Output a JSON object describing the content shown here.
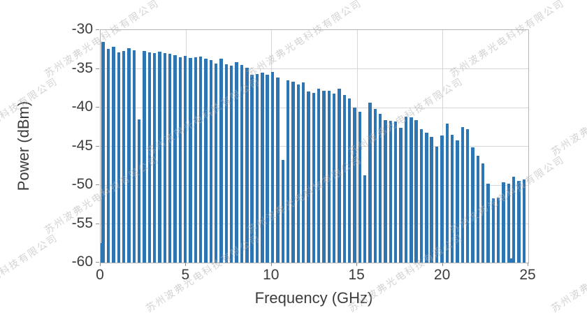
{
  "watermark": {
    "text": "苏州波弗光电科技有限公司",
    "color": "rgba(175,175,175,0.55)"
  },
  "style": {
    "bar_color": "#2e75b4",
    "grid_color": "#d6d6d6",
    "border_color": "#b5b5b5",
    "tick_color": "#8f8f8f",
    "text_color": "#3c3c3c"
  },
  "chart_data": {
    "type": "bar",
    "title": "",
    "xlabel": "Frequency (GHz)",
    "ylabel": "Power (dBm)",
    "xlim": [
      0,
      25
    ],
    "ylim": [
      -60,
      -30
    ],
    "grid": true,
    "legend": "none",
    "x_ticks": [
      0,
      5,
      10,
      15,
      20,
      25
    ],
    "y_ticks": [
      -30,
      -35,
      -40,
      -45,
      -50,
      -55,
      -60
    ],
    "bar_width_ghz": 0.18,
    "points": [
      [
        0.0,
        -57.5
      ],
      [
        0.15,
        -31.5
      ],
      [
        0.45,
        -32.4
      ],
      [
        0.75,
        -32.2
      ],
      [
        1.05,
        -32.9
      ],
      [
        1.35,
        -32.7
      ],
      [
        1.65,
        -32.3
      ],
      [
        1.95,
        -32.6
      ],
      [
        2.25,
        -41.5
      ],
      [
        2.55,
        -32.7
      ],
      [
        2.85,
        -32.9
      ],
      [
        3.15,
        -33.0
      ],
      [
        3.45,
        -32.8
      ],
      [
        3.75,
        -33.0
      ],
      [
        4.05,
        -33.1
      ],
      [
        4.35,
        -33.2
      ],
      [
        4.65,
        -33.5
      ],
      [
        4.95,
        -33.3
      ],
      [
        5.25,
        -33.6
      ],
      [
        5.55,
        -33.5
      ],
      [
        5.85,
        -33.4
      ],
      [
        6.15,
        -33.7
      ],
      [
        6.45,
        -33.9
      ],
      [
        6.75,
        -34.3
      ],
      [
        7.05,
        -33.7
      ],
      [
        7.35,
        -34.4
      ],
      [
        7.65,
        -34.6
      ],
      [
        7.95,
        -34.1
      ],
      [
        8.25,
        -34.5
      ],
      [
        8.55,
        -34.9
      ],
      [
        8.85,
        -35.8
      ],
      [
        9.15,
        -35.7
      ],
      [
        9.45,
        -35.5
      ],
      [
        9.75,
        -35.8
      ],
      [
        10.05,
        -35.4
      ],
      [
        10.35,
        -36.1
      ],
      [
        10.65,
        -46.8
      ],
      [
        10.95,
        -36.5
      ],
      [
        11.25,
        -36.7
      ],
      [
        11.55,
        -37.0
      ],
      [
        11.85,
        -36.8
      ],
      [
        12.15,
        -37.9
      ],
      [
        12.45,
        -38.1
      ],
      [
        12.75,
        -37.6
      ],
      [
        13.05,
        -37.8
      ],
      [
        13.35,
        -37.8
      ],
      [
        13.65,
        -38.2
      ],
      [
        13.95,
        -37.6
      ],
      [
        14.25,
        -38.4
      ],
      [
        14.55,
        -38.8
      ],
      [
        14.85,
        -40.0
      ],
      [
        15.15,
        -40.5
      ],
      [
        15.45,
        -48.7
      ],
      [
        15.75,
        -39.4
      ],
      [
        16.05,
        -40.2
      ],
      [
        16.35,
        -40.8
      ],
      [
        16.65,
        -41.6
      ],
      [
        16.95,
        -41.7
      ],
      [
        17.25,
        -41.8
      ],
      [
        17.55,
        -42.6
      ],
      [
        17.85,
        -41.2
      ],
      [
        18.15,
        -41.3
      ],
      [
        18.45,
        -41.6
      ],
      [
        18.75,
        -42.8
      ],
      [
        19.05,
        -43.2
      ],
      [
        19.35,
        -43.8
      ],
      [
        19.65,
        -45.0
      ],
      [
        19.95,
        -43.6
      ],
      [
        20.25,
        -42.1
      ],
      [
        20.55,
        -43.5
      ],
      [
        20.85,
        -44.2
      ],
      [
        21.15,
        -42.5
      ],
      [
        21.45,
        -42.8
      ],
      [
        21.75,
        -45.1
      ],
      [
        22.05,
        -46.2
      ],
      [
        22.35,
        -47.2
      ],
      [
        22.65,
        -49.8
      ],
      [
        22.95,
        -51.7
      ],
      [
        23.25,
        -51.6
      ],
      [
        23.55,
        -49.6
      ],
      [
        23.85,
        -49.8
      ],
      [
        24.0,
        -59.5
      ],
      [
        24.15,
        -48.9
      ],
      [
        24.45,
        -49.5
      ],
      [
        24.75,
        -49.3
      ]
    ]
  }
}
